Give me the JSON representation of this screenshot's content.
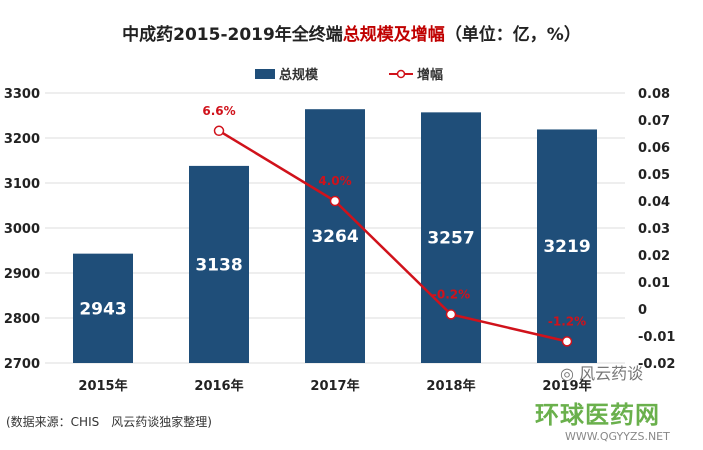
{
  "title": {
    "prefix": "中成药2015-2019年全终端",
    "highlight": "总规模及增幅",
    "suffix": "（单位：亿，%）"
  },
  "source": "(数据来源：CHIS　风云药谈独家整理)",
  "watermark": {
    "wechat": "风云药谈",
    "site_cn": "环球医药网",
    "site_en": "WWW.QGYYZS.NET"
  },
  "colors": {
    "bar": "#1f4e79",
    "line": "#d0121b",
    "label": "#d0121b"
  },
  "chart_data": {
    "type": "bar+line",
    "categories": [
      "2015年",
      "2016年",
      "2017年",
      "2018年",
      "2019年"
    ],
    "series": [
      {
        "name": "总规模",
        "type": "bar",
        "axis": "left",
        "values": [
          2943,
          3138,
          3264,
          3257,
          3219
        ],
        "labels": [
          "2943",
          "3138",
          "3264",
          "3257",
          "3219"
        ]
      },
      {
        "name": "增幅",
        "type": "line",
        "axis": "right",
        "values": [
          null,
          0.066,
          0.04,
          -0.002,
          -0.012
        ],
        "labels": [
          "",
          "6.6%",
          "4.0%",
          "-0.2%",
          "-1.2%"
        ]
      }
    ],
    "left_axis": {
      "ylim": [
        2700,
        3300
      ],
      "ticks": [
        "2700",
        "2800",
        "2900",
        "3000",
        "3100",
        "3200",
        "3300"
      ]
    },
    "right_axis": {
      "ylim": [
        -0.02,
        0.08
      ],
      "ticks": [
        "-0.02",
        "-0.01",
        "0",
        "0.01",
        "0.02",
        "0.03",
        "0.04",
        "0.05",
        "0.06",
        "0.07",
        "0.08"
      ]
    },
    "legend": {
      "position": "top",
      "items": [
        "总规模",
        "增幅"
      ]
    },
    "grid": true
  }
}
